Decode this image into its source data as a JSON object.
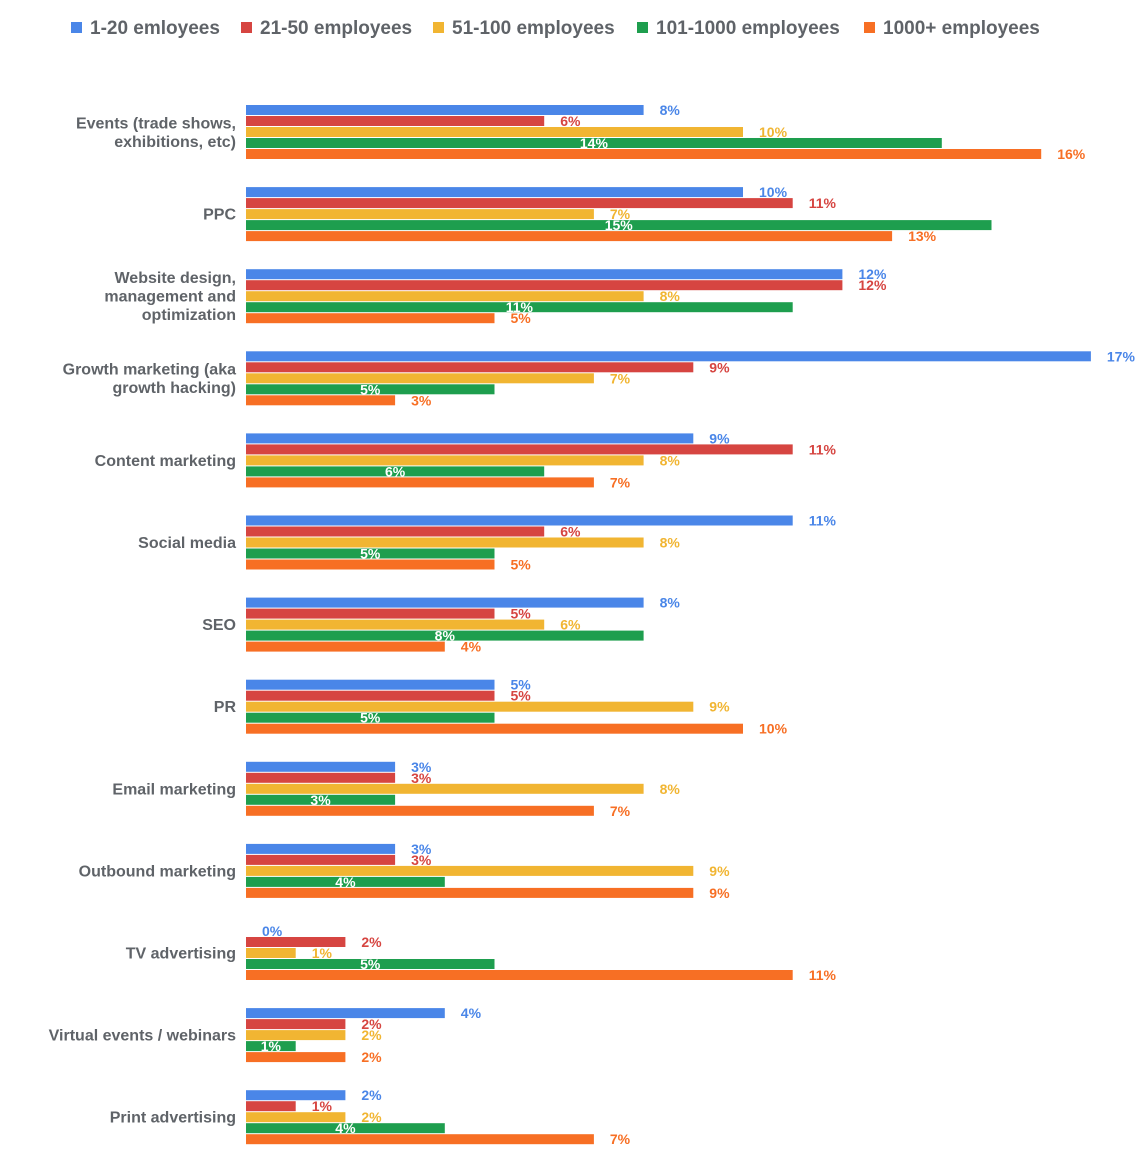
{
  "chart_data": {
    "type": "bar",
    "orientation": "horizontal",
    "legend_position": "top",
    "grid": false,
    "xlim": [
      0,
      17
    ],
    "categories": [
      "Events (trade shows, exhibitions, etc)",
      "PPC",
      "Website design, management and optimization",
      "Growth marketing (aka growth hacking)",
      "Content marketing",
      "Social media",
      "SEO",
      "PR",
      "Email marketing",
      "Outbound marketing",
      "TV advertising",
      "Virtual events / webinars",
      "Print advertising"
    ],
    "category_lines": [
      [
        "Events (trade shows,",
        "exhibitions, etc)"
      ],
      [
        "PPC"
      ],
      [
        "Website design,",
        "management and",
        "optimization"
      ],
      [
        "Growth marketing (aka",
        "growth hacking)"
      ],
      [
        "Content marketing"
      ],
      [
        "Social media"
      ],
      [
        "SEO"
      ],
      [
        "PR"
      ],
      [
        "Email marketing"
      ],
      [
        "Outbound marketing"
      ],
      [
        "TV advertising"
      ],
      [
        "Virtual events / webinars"
      ],
      [
        "Print advertising"
      ]
    ],
    "series": [
      {
        "name": "1-20 emloyees",
        "color": "#4a86e8",
        "values": [
          8,
          10,
          12,
          17,
          9,
          11,
          8,
          5,
          3,
          3,
          0,
          4,
          2
        ],
        "labels": [
          "8%",
          "10%",
          "12%",
          "17%",
          "9%",
          "11%",
          "8%",
          "5%",
          "3%",
          "3%",
          "0%",
          "4%",
          "2%"
        ]
      },
      {
        "name": "21-50 employees",
        "color": "#d64541",
        "values": [
          6,
          11,
          12,
          9,
          11,
          6,
          5,
          5,
          3,
          3,
          2,
          2,
          1
        ],
        "labels": [
          "6%",
          "11%",
          "12%",
          "9%",
          "11%",
          "6%",
          "5%",
          "5%",
          "3%",
          "3%",
          "2%",
          "2%",
          "1%"
        ]
      },
      {
        "name": "51-100 employees",
        "color": "#f1b532",
        "values": [
          10,
          7,
          8,
          7,
          8,
          8,
          6,
          9,
          8,
          9,
          1,
          2,
          2
        ],
        "labels": [
          "10%",
          "7%",
          "8%",
          "7%",
          "8%",
          "8%",
          "6%",
          "9%",
          "8%",
          "9%",
          "1%",
          "2%",
          "2%"
        ]
      },
      {
        "name": "101-1000 employees",
        "color": "#1e9e4e",
        "values": [
          14,
          15,
          11,
          5,
          6,
          5,
          8,
          5,
          3,
          4,
          5,
          1,
          4
        ],
        "labels": [
          "14%",
          "15%",
          "11%",
          "5%",
          "6%",
          "5%",
          "8%",
          "5%",
          "3%",
          "4%",
          "5%",
          "1%",
          "4%"
        ]
      },
      {
        "name": "1000+ employees",
        "color": "#f76f24",
        "values": [
          16,
          13,
          5,
          3,
          7,
          5,
          4,
          10,
          7,
          9,
          11,
          2,
          7
        ],
        "labels": [
          "16%",
          "13%",
          "5%",
          "3%",
          "7%",
          "5%",
          "4%",
          "10%",
          "7%",
          "9%",
          "11%",
          "2%",
          "7%"
        ]
      }
    ]
  }
}
